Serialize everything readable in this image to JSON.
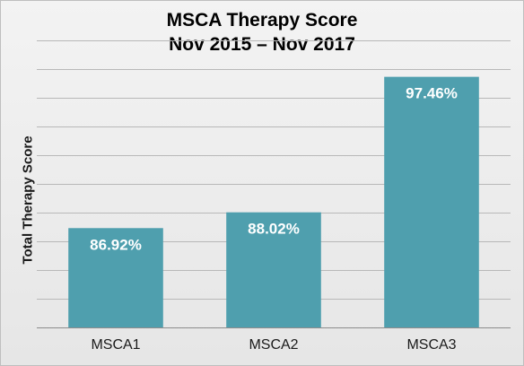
{
  "chart_data": {
    "type": "bar",
    "title_lines": [
      "MSCA Therapy Score",
      "Nov 2015 – Nov 2017"
    ],
    "xlabel": "",
    "ylabel": "Total Therapy Score",
    "categories": [
      "MSCA1",
      "MSCA2",
      "MSCA3"
    ],
    "values": [
      86.92,
      88.02,
      97.46
    ],
    "data_labels": [
      "86.92%",
      "88.02%",
      "97.46%"
    ],
    "ylim": [
      80,
      100
    ],
    "grid": true,
    "legend": "none",
    "colors": {
      "bar": "#4f9fae",
      "grid": "#b8b8b8",
      "axis": "#8c8c8c",
      "background_top": "#f3f3f3",
      "background_bottom": "#e6e6e6"
    }
  }
}
